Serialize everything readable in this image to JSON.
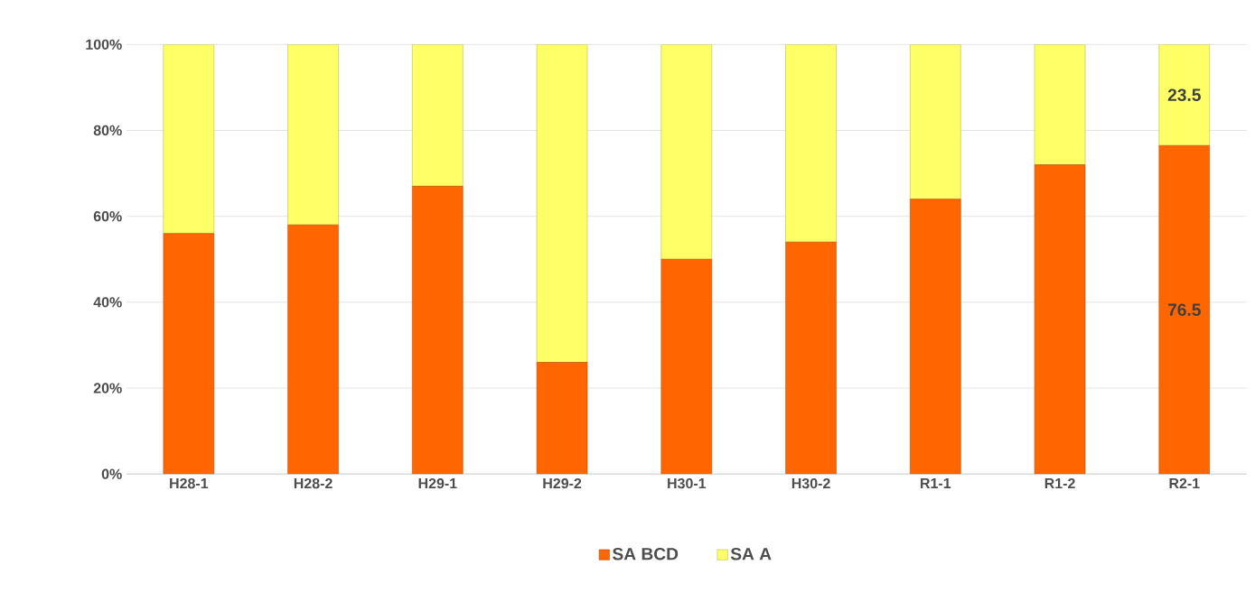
{
  "chart_data": {
    "type": "bar",
    "stacked": true,
    "categories": [
      "H28-1",
      "H28-2",
      "H29-1",
      "H29-2",
      "H30-1",
      "H30-2",
      "R1-1",
      "R1-2",
      "R2-1"
    ],
    "series": [
      {
        "name": "SA BCD",
        "color": "#ff6600",
        "values": [
          56,
          58,
          67,
          26,
          50,
          54,
          64,
          72,
          76.5
        ],
        "value_labels": [
          null,
          null,
          null,
          null,
          null,
          null,
          null,
          null,
          "76.5"
        ]
      },
      {
        "name": "SA A",
        "color": "#ffff66",
        "values": [
          44,
          42,
          33,
          74,
          50,
          46,
          36,
          28,
          23.5
        ],
        "value_labels": [
          null,
          null,
          null,
          null,
          null,
          null,
          null,
          null,
          "23.5"
        ]
      }
    ],
    "ylim": [
      0,
      100
    ],
    "yticks": [
      {
        "value": 0,
        "label": "0%"
      },
      {
        "value": 20,
        "label": "20%"
      },
      {
        "value": 40,
        "label": "40%"
      },
      {
        "value": 60,
        "label": "60%"
      },
      {
        "value": 80,
        "label": "80%"
      },
      {
        "value": 100,
        "label": "100%"
      }
    ],
    "grid": "y",
    "legend": "bottom"
  }
}
